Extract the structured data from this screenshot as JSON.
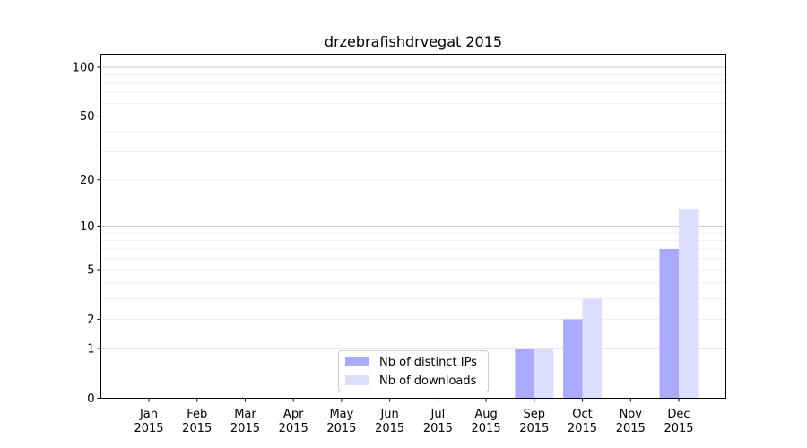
{
  "chart_data": {
    "type": "bar",
    "title": "drzebrafishdrvegat 2015",
    "categories": [
      [
        "Jan",
        "2015"
      ],
      [
        "Feb",
        "2015"
      ],
      [
        "Mar",
        "2015"
      ],
      [
        "Apr",
        "2015"
      ],
      [
        "May",
        "2015"
      ],
      [
        "Jun",
        "2015"
      ],
      [
        "Jul",
        "2015"
      ],
      [
        "Aug",
        "2015"
      ],
      [
        "Sep",
        "2015"
      ],
      [
        "Oct",
        "2015"
      ],
      [
        "Nov",
        "2015"
      ],
      [
        "Dec",
        "2015"
      ]
    ],
    "series": [
      {
        "name": "Nb of distinct IPs",
        "color": "#aaaaff",
        "values": [
          0,
          0,
          0,
          0,
          0,
          0,
          0,
          0,
          1,
          2,
          0,
          7
        ]
      },
      {
        "name": "Nb of downloads",
        "color": "#ddddff",
        "values": [
          0,
          0,
          0,
          0,
          0,
          0,
          0,
          0,
          1,
          3,
          0,
          13
        ]
      }
    ],
    "y_scale": "log(1+y)",
    "yticks": [
      0,
      1,
      2,
      5,
      10,
      20,
      50,
      100
    ],
    "ylim": [
      0,
      120
    ],
    "grid": true,
    "legend_position": "bottom-center"
  }
}
